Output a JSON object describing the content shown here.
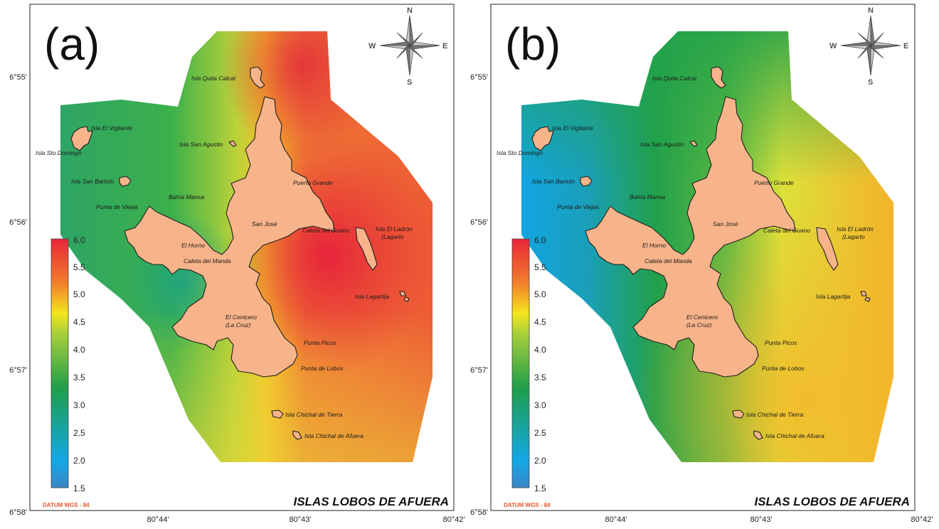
{
  "colors": {
    "island_fill": "#f7b48a",
    "datum_text": "#e8572a",
    "scale_low": "#3b86c6",
    "scale_blue": "#13a8e6",
    "scale_green": "#1f9e4a",
    "scale_yellow": "#f3e61d",
    "scale_orange": "#f3802a",
    "scale_red": "#e8253a"
  },
  "panels": [
    {
      "letter": "(a)",
      "title": "ISLAS LOBOS DE AFUERA",
      "datum": "DATUM WGS - 84",
      "surface": "high",
      "compass": {
        "n": "N",
        "s": "S",
        "e": "E",
        "w": "W",
        "icon": "compass-rose-icon"
      },
      "legend": {
        "min": 1.5,
        "max": 6.0,
        "ticks": [
          "6.0",
          "5.5",
          "5.0",
          "4.5",
          "4.0",
          "3.5",
          "3.0",
          "2.5",
          "2.0",
          "1.5"
        ]
      }
    },
    {
      "letter": "(b)",
      "title": "ISLAS LOBOS DE AFUERA",
      "datum": "DATUM WGS - 84",
      "surface": "low",
      "compass": {
        "n": "N",
        "s": "S",
        "e": "E",
        "w": "W",
        "icon": "compass-rose-icon"
      },
      "legend": {
        "min": 1.5,
        "max": 6.0,
        "ticks": [
          "6.0",
          "5.5",
          "5.0",
          "4.5",
          "4.0",
          "3.5",
          "3.0",
          "2.5",
          "2.0",
          "1.5"
        ]
      }
    }
  ],
  "axes": {
    "lat_labels": [
      "6°55'",
      "6°56'",
      "6°57'",
      "6°58'"
    ],
    "lon_labels": [
      "80°44'",
      "80°43'",
      "80°42'"
    ]
  },
  "places": [
    "Isla Quita Calcal",
    "Isla El Vigilante",
    "Isla Sto Domingo",
    "Isla San Agustin",
    "Isla San Bartolo",
    "Puerto Grande",
    "Bahía Mansa",
    "Punta de Viejas",
    "San José",
    "Caleta del Guano",
    "Isla El Ladrón",
    "(Lagarto",
    "El Horno",
    "Caleta del Manda",
    "Isla Lagartija",
    "El Cenicero",
    "(La Cruz)",
    "Punta Picos",
    "Punta de Lobos",
    "Isla Chichal de Tierra",
    "Isla Chichal de Afuera"
  ]
}
